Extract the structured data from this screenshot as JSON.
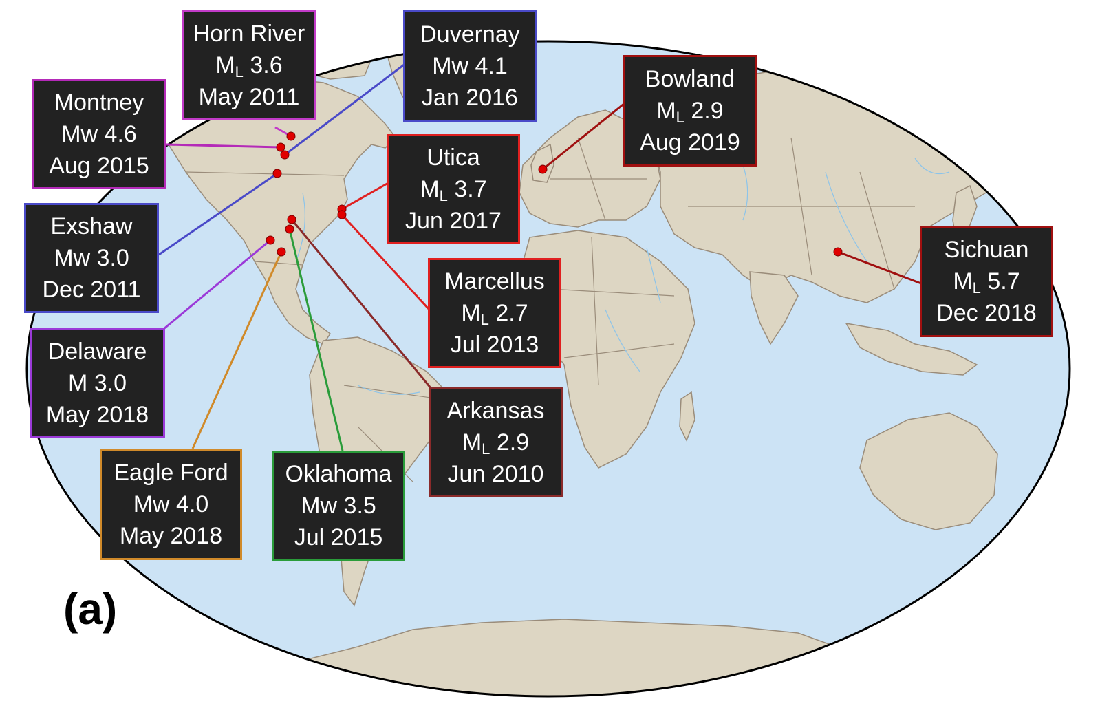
{
  "panel_label": "(a)",
  "colors": {
    "ocean": "#cce3f5",
    "land": "#ddd6c3",
    "border": "#9a8c7a",
    "river": "#8cc4ea",
    "box_fill": "#222222",
    "box_text": "#ffffff",
    "marker": "#e00000"
  },
  "events": [
    {
      "id": "horn-river",
      "name": "Horn River",
      "mag_type": "M",
      "mag_sub": "L",
      "mag_value": "3.6",
      "date": "May 2011",
      "color": "#c23bc8",
      "lat": 59.5,
      "lon": -121.5
    },
    {
      "id": "montney",
      "name": "Montney",
      "mag_type": "Mw",
      "mag_sub": "",
      "mag_value": "4.6",
      "date": "Aug 2015",
      "color": "#b42ab8",
      "lat": 56.5,
      "lon": -122.0
    },
    {
      "id": "duvernay",
      "name": "Duvernay",
      "mag_type": "Mw",
      "mag_sub": "",
      "mag_value": "4.1",
      "date": "Jan 2016",
      "color": "#4a4ac8",
      "lat": 55.0,
      "lon": -117.5
    },
    {
      "id": "exshaw",
      "name": "Exshaw",
      "mag_type": "Mw",
      "mag_sub": "",
      "mag_value": "3.0",
      "date": "Dec 2011",
      "color": "#4a4ac8",
      "lat": 49.5,
      "lon": -115.5
    },
    {
      "id": "delaware",
      "name": "Delaware",
      "mag_type": "M",
      "mag_sub": "",
      "mag_value": "3.0",
      "date": "May 2018",
      "color": "#9b3ad8",
      "lat": 31.7,
      "lon": -104.0
    },
    {
      "id": "eagle-ford",
      "name": "Eagle Ford",
      "mag_type": "Mw",
      "mag_sub": "",
      "mag_value": "4.0",
      "date": "May 2018",
      "color": "#d08a2a",
      "lat": 28.8,
      "lon": -99.0
    },
    {
      "id": "oklahoma",
      "name": "Oklahoma",
      "mag_type": "Mw",
      "mag_sub": "",
      "mag_value": "3.5",
      "date": "Jul 2015",
      "color": "#2a9c3a",
      "lat": 35.8,
      "lon": -97.5
    },
    {
      "id": "arkansas",
      "name": "Arkansas",
      "mag_type": "M",
      "mag_sub": "L",
      "mag_value": "2.9",
      "date": "Jun 2010",
      "color": "#8a2a2a",
      "lat": 37.5,
      "lon": -98.5
    },
    {
      "id": "utica",
      "name": "Utica",
      "mag_type": "M",
      "mag_sub": "L",
      "mag_value": "3.7",
      "date": "Jun 2017",
      "color": "#e02020",
      "lat": 40.3,
      "lon": -80.8
    },
    {
      "id": "marcellus",
      "name": "Marcellus",
      "mag_type": "M",
      "mag_sub": "L",
      "mag_value": "2.7",
      "date": "Jul 2013",
      "color": "#e02020",
      "lat": 39.6,
      "lon": -80.5
    },
    {
      "id": "bowland",
      "name": "Bowland",
      "mag_type": "M",
      "mag_sub": "L",
      "mag_value": "2.9",
      "date": "Aug 2019",
      "color": "#a01010",
      "lat": 53.8,
      "lon": -2.9
    },
    {
      "id": "sichuan",
      "name": "Sichuan",
      "mag_type": "M",
      "mag_sub": "L",
      "mag_value": "5.7",
      "date": "Dec 2018",
      "color": "#a01010",
      "lat": 28.2,
      "lon": 104.9
    }
  ]
}
